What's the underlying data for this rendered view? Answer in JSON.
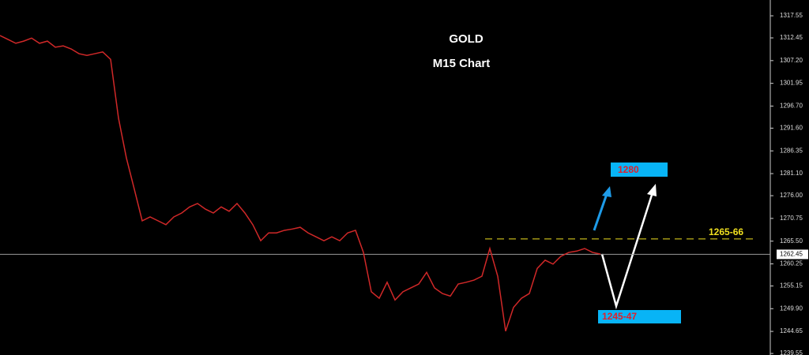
{
  "chart_data": {
    "type": "line",
    "title": "GOLD",
    "subtitle": "M15 Chart",
    "categories": [
      null,
      null,
      null,
      null,
      null,
      null,
      null,
      null,
      null,
      null,
      null,
      null,
      null,
      null,
      null,
      null,
      null,
      null,
      null,
      null,
      null,
      null,
      null,
      null,
      null,
      null,
      null,
      null,
      null,
      null,
      null,
      null,
      null,
      null,
      null,
      null,
      null,
      null,
      null,
      null,
      null,
      null,
      null,
      null,
      null,
      null,
      null,
      null,
      null,
      null,
      null,
      null,
      null,
      null,
      null,
      null,
      null,
      null,
      null,
      null,
      null,
      null,
      null,
      null,
      null,
      null,
      null,
      null,
      null,
      null,
      null,
      null,
      null,
      null,
      null,
      null,
      null
    ],
    "series": [
      {
        "color": "#d02828",
        "values": [
          1313.0,
          1312.1,
          1311.2,
          1311.7,
          1312.4,
          1311.2,
          1311.7,
          1310.3,
          1310.6,
          1309.9,
          1308.8,
          1308.4,
          1308.8,
          1309.2,
          1307.5,
          1293.9,
          1284.7,
          1277.5,
          1270.2,
          1271.1,
          1270.2,
          1269.3,
          1271.1,
          1272.0,
          1273.4,
          1274.2,
          1272.9,
          1272.0,
          1273.4,
          1272.4,
          1274.2,
          1272.0,
          1269.3,
          1265.6,
          1267.4,
          1267.4,
          1268.0,
          1268.3,
          1268.7,
          1267.4,
          1266.5,
          1265.6,
          1266.5,
          1265.6,
          1267.4,
          1268.0,
          1262.9,
          1253.8,
          1252.3,
          1256.0,
          1251.9,
          1253.8,
          1254.7,
          1255.6,
          1258.3,
          1254.7,
          1253.4,
          1252.8,
          1255.6,
          1256.0,
          1256.5,
          1257.4,
          1263.8,
          1257.4,
          1244.7,
          1250.2,
          1252.3,
          1253.4,
          1259.2,
          1261.1,
          1260.2,
          1262.0,
          1262.9,
          1263.2,
          1263.8,
          1262.9,
          1262.5
        ]
      }
    ],
    "ylim": [
      1239.2,
      1321.2
    ],
    "yticks": [
      1317.55,
      1312.45,
      {
        "value": 1307.2,
        "label": "1307.20"
      },
      1301.95,
      {
        "value": 1296.7,
        "label": "1296.70"
      },
      {
        "value": 1291.6,
        "label": "1291.60"
      },
      1286.35,
      {
        "value": 1281.1,
        "label": "1281.10"
      },
      {
        "value": 1276,
        "label": "1276.00"
      },
      1270.75,
      {
        "value": 1265.5,
        "label": "1265.50"
      },
      1260.25,
      1255.15,
      {
        "value": 1249.9,
        "label": "1249.90"
      },
      1244.65,
      1239.55
    ],
    "current_price": 1262.45,
    "level": {
      "value": 1266,
      "label": "1265-66"
    },
    "targets": [
      "1280",
      "1245-47"
    ]
  }
}
